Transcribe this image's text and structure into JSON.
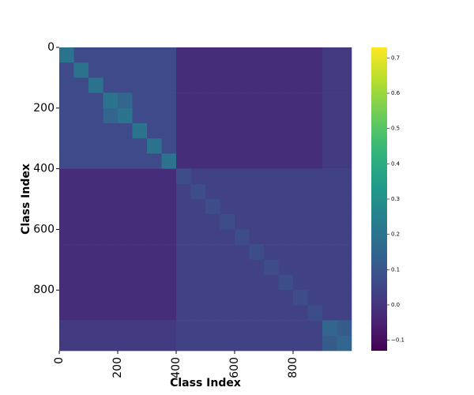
{
  "chart_data": {
    "type": "heatmap",
    "xlabel": "Class Index",
    "ylabel": "Class Index",
    "bins": [
      0,
      50,
      100,
      150,
      200,
      250,
      300,
      350,
      400,
      450,
      500,
      550,
      600,
      650,
      700,
      750,
      800,
      850,
      900,
      950,
      1000
    ],
    "xlim": [
      0,
      1000
    ],
    "ylim": [
      0,
      1000
    ],
    "xticks": [
      0,
      200,
      400,
      600,
      800
    ],
    "yticks": [
      0,
      200,
      400,
      600,
      800
    ],
    "clim": [
      -0.13,
      0.73
    ],
    "cticks": [
      {
        "value": -0.1,
        "label": "−0.1"
      },
      {
        "value": 0,
        "label": "0.0"
      },
      0.1,
      0.2,
      0.3,
      0.4,
      0.5,
      0.6,
      0.7
    ],
    "colormap": "viridis",
    "z": [
      [
        0.2,
        0.06,
        0.06,
        0.06,
        0.06,
        0.06,
        0.06,
        0.06,
        -0.02,
        -0.02,
        -0.02,
        -0.02,
        -0.02,
        -0.02,
        -0.02,
        -0.02,
        -0.02,
        -0.02,
        0.02,
        0.02
      ],
      [
        0.06,
        0.2,
        0.06,
        0.06,
        0.06,
        0.06,
        0.06,
        0.06,
        -0.02,
        -0.02,
        -0.02,
        -0.02,
        -0.02,
        -0.02,
        -0.02,
        -0.02,
        -0.02,
        -0.02,
        0.02,
        0.02
      ],
      [
        0.06,
        0.06,
        0.2,
        0.06,
        0.06,
        0.06,
        0.06,
        0.06,
        -0.02,
        -0.02,
        -0.02,
        -0.02,
        -0.02,
        -0.02,
        -0.02,
        -0.02,
        -0.02,
        -0.02,
        0.02,
        0.02
      ],
      [
        0.06,
        0.06,
        0.06,
        0.2,
        0.15,
        0.06,
        0.06,
        0.06,
        -0.02,
        -0.02,
        -0.02,
        -0.02,
        -0.02,
        -0.02,
        -0.02,
        -0.02,
        -0.02,
        -0.02,
        0.02,
        0.02
      ],
      [
        0.06,
        0.06,
        0.06,
        0.15,
        0.2,
        0.06,
        0.06,
        0.06,
        -0.02,
        -0.02,
        -0.02,
        -0.02,
        -0.02,
        -0.02,
        -0.02,
        -0.02,
        -0.02,
        -0.02,
        0.02,
        0.02
      ],
      [
        0.06,
        0.06,
        0.06,
        0.06,
        0.06,
        0.2,
        0.06,
        0.06,
        -0.02,
        -0.02,
        -0.02,
        -0.02,
        -0.02,
        -0.02,
        -0.02,
        -0.02,
        -0.02,
        -0.02,
        0.02,
        0.02
      ],
      [
        0.06,
        0.06,
        0.06,
        0.06,
        0.06,
        0.06,
        0.2,
        0.06,
        -0.02,
        -0.02,
        -0.02,
        -0.02,
        -0.02,
        -0.02,
        -0.02,
        -0.02,
        -0.02,
        -0.02,
        0.02,
        0.02
      ],
      [
        0.06,
        0.06,
        0.06,
        0.06,
        0.06,
        0.06,
        0.06,
        0.2,
        -0.02,
        -0.02,
        -0.02,
        -0.02,
        -0.02,
        -0.02,
        -0.02,
        -0.02,
        -0.02,
        -0.02,
        0.02,
        0.02
      ],
      [
        -0.02,
        -0.02,
        -0.02,
        -0.02,
        -0.02,
        -0.02,
        -0.02,
        -0.02,
        0.07,
        0.04,
        0.04,
        0.04,
        0.04,
        0.04,
        0.04,
        0.04,
        0.04,
        0.04,
        0.04,
        0.04
      ],
      [
        -0.02,
        -0.02,
        -0.02,
        -0.02,
        -0.02,
        -0.02,
        -0.02,
        -0.02,
        0.04,
        0.07,
        0.04,
        0.04,
        0.04,
        0.04,
        0.04,
        0.04,
        0.04,
        0.04,
        0.04,
        0.04
      ],
      [
        -0.02,
        -0.02,
        -0.02,
        -0.02,
        -0.02,
        -0.02,
        -0.02,
        -0.02,
        0.04,
        0.04,
        0.07,
        0.04,
        0.04,
        0.04,
        0.04,
        0.04,
        0.04,
        0.04,
        0.04,
        0.04
      ],
      [
        -0.02,
        -0.02,
        -0.02,
        -0.02,
        -0.02,
        -0.02,
        -0.02,
        -0.02,
        0.04,
        0.04,
        0.04,
        0.07,
        0.04,
        0.04,
        0.04,
        0.04,
        0.04,
        0.04,
        0.04,
        0.04
      ],
      [
        -0.02,
        -0.02,
        -0.02,
        -0.02,
        -0.02,
        -0.02,
        -0.02,
        -0.02,
        0.04,
        0.04,
        0.04,
        0.04,
        0.07,
        0.04,
        0.04,
        0.04,
        0.04,
        0.04,
        0.04,
        0.04
      ],
      [
        -0.02,
        -0.02,
        -0.02,
        -0.02,
        -0.02,
        -0.02,
        -0.02,
        -0.02,
        0.04,
        0.04,
        0.04,
        0.04,
        0.04,
        0.07,
        0.04,
        0.04,
        0.04,
        0.04,
        0.04,
        0.04
      ],
      [
        -0.02,
        -0.02,
        -0.02,
        -0.02,
        -0.02,
        -0.02,
        -0.02,
        -0.02,
        0.04,
        0.04,
        0.04,
        0.04,
        0.04,
        0.04,
        0.07,
        0.04,
        0.04,
        0.04,
        0.04,
        0.04
      ],
      [
        -0.02,
        -0.02,
        -0.02,
        -0.02,
        -0.02,
        -0.02,
        -0.02,
        -0.02,
        0.04,
        0.04,
        0.04,
        0.04,
        0.04,
        0.04,
        0.04,
        0.07,
        0.04,
        0.04,
        0.04,
        0.04
      ],
      [
        -0.02,
        -0.02,
        -0.02,
        -0.02,
        -0.02,
        -0.02,
        -0.02,
        -0.02,
        0.04,
        0.04,
        0.04,
        0.04,
        0.04,
        0.04,
        0.04,
        0.04,
        0.07,
        0.04,
        0.04,
        0.04
      ],
      [
        -0.02,
        -0.02,
        -0.02,
        -0.02,
        -0.02,
        -0.02,
        -0.02,
        -0.02,
        0.04,
        0.04,
        0.04,
        0.04,
        0.04,
        0.04,
        0.04,
        0.04,
        0.04,
        0.07,
        0.04,
        0.04
      ],
      [
        0.02,
        0.02,
        0.02,
        0.02,
        0.02,
        0.02,
        0.02,
        0.02,
        0.04,
        0.04,
        0.04,
        0.04,
        0.04,
        0.04,
        0.04,
        0.04,
        0.04,
        0.04,
        0.15,
        0.12
      ],
      [
        0.02,
        0.02,
        0.02,
        0.02,
        0.02,
        0.02,
        0.02,
        0.02,
        0.04,
        0.04,
        0.04,
        0.04,
        0.04,
        0.04,
        0.04,
        0.04,
        0.04,
        0.04,
        0.12,
        0.15
      ]
    ]
  }
}
